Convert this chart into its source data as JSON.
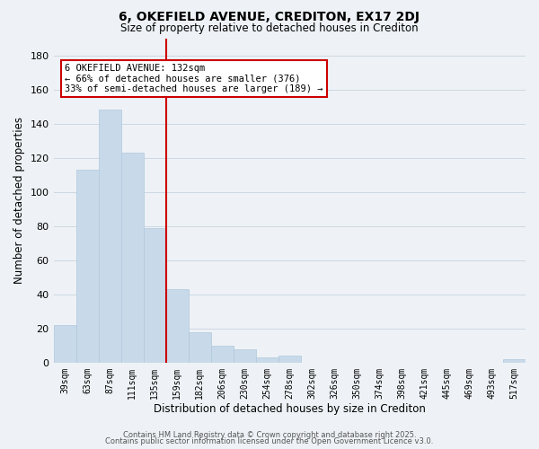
{
  "title": "6, OKEFIELD AVENUE, CREDITON, EX17 2DJ",
  "subtitle": "Size of property relative to detached houses in Crediton",
  "xlabel": "Distribution of detached houses by size in Crediton",
  "ylabel": "Number of detached properties",
  "bar_color": "#c8daea",
  "bar_edge_color": "#b0c8dc",
  "categories": [
    "39sqm",
    "63sqm",
    "87sqm",
    "111sqm",
    "135sqm",
    "159sqm",
    "182sqm",
    "206sqm",
    "230sqm",
    "254sqm",
    "278sqm",
    "302sqm",
    "326sqm",
    "350sqm",
    "374sqm",
    "398sqm",
    "421sqm",
    "445sqm",
    "469sqm",
    "493sqm",
    "517sqm"
  ],
  "values": [
    22,
    113,
    148,
    123,
    79,
    43,
    18,
    10,
    8,
    3,
    4,
    0,
    0,
    0,
    0,
    0,
    0,
    0,
    0,
    0,
    2
  ],
  "ylim": [
    0,
    190
  ],
  "yticks": [
    0,
    20,
    40,
    60,
    80,
    100,
    120,
    140,
    160,
    180
  ],
  "red_line_x": 4.5,
  "annotation_title": "6 OKEFIELD AVENUE: 132sqm",
  "annotation_line1": "← 66% of detached houses are smaller (376)",
  "annotation_line2": "33% of semi-detached houses are larger (189) →",
  "annotation_box_color": "#ffffff",
  "annotation_box_edge_color": "#cc0000",
  "red_line_color": "#cc0000",
  "grid_color": "#ccd8e4",
  "background_color": "#eef2f6",
  "footer_line1": "Contains HM Land Registry data © Crown copyright and database right 2025.",
  "footer_line2": "Contains public sector information licensed under the Open Government Licence v3.0."
}
